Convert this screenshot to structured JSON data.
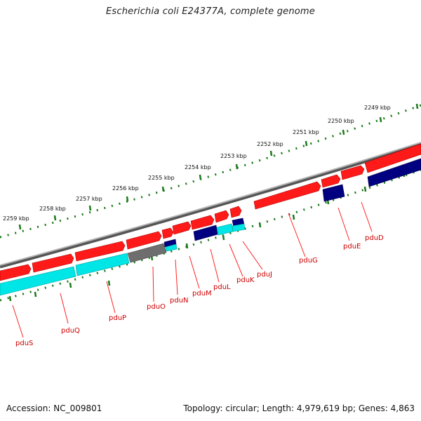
{
  "title": "Escherichia coli E24377A, complete genome",
  "footer": {
    "accession": "Accession: NC_009801",
    "topology": "Topology: circular; Length: 4,979,619 bp; Genes: 4,863"
  },
  "colors": {
    "backbone": "#8a8a8a",
    "forward_gene": "#ff1a1a",
    "reverse_gene": "#000080",
    "forward_other": "#00e5e5",
    "reverse_other": "#00e5e5",
    "pseudo": "#6e6e6e",
    "ticks": "#1a7a1a",
    "gene_label": "#cc0000"
  },
  "kbp_labels": [
    "2249 kbp",
    "2250 kbp",
    "2251 kbp",
    "2252 kbp",
    "2253 kbp",
    "2254 kbp",
    "2255 kbp",
    "2256 kbp",
    "2257 kbp",
    "2258 kbp",
    "2259 kbp"
  ],
  "gene_labels": [
    "pduD",
    "pduE",
    "pduG",
    "pduJ",
    "pduK",
    "pduL",
    "pduM",
    "pduN",
    "pduO",
    "pduP",
    "pduQ",
    "pduS"
  ]
}
